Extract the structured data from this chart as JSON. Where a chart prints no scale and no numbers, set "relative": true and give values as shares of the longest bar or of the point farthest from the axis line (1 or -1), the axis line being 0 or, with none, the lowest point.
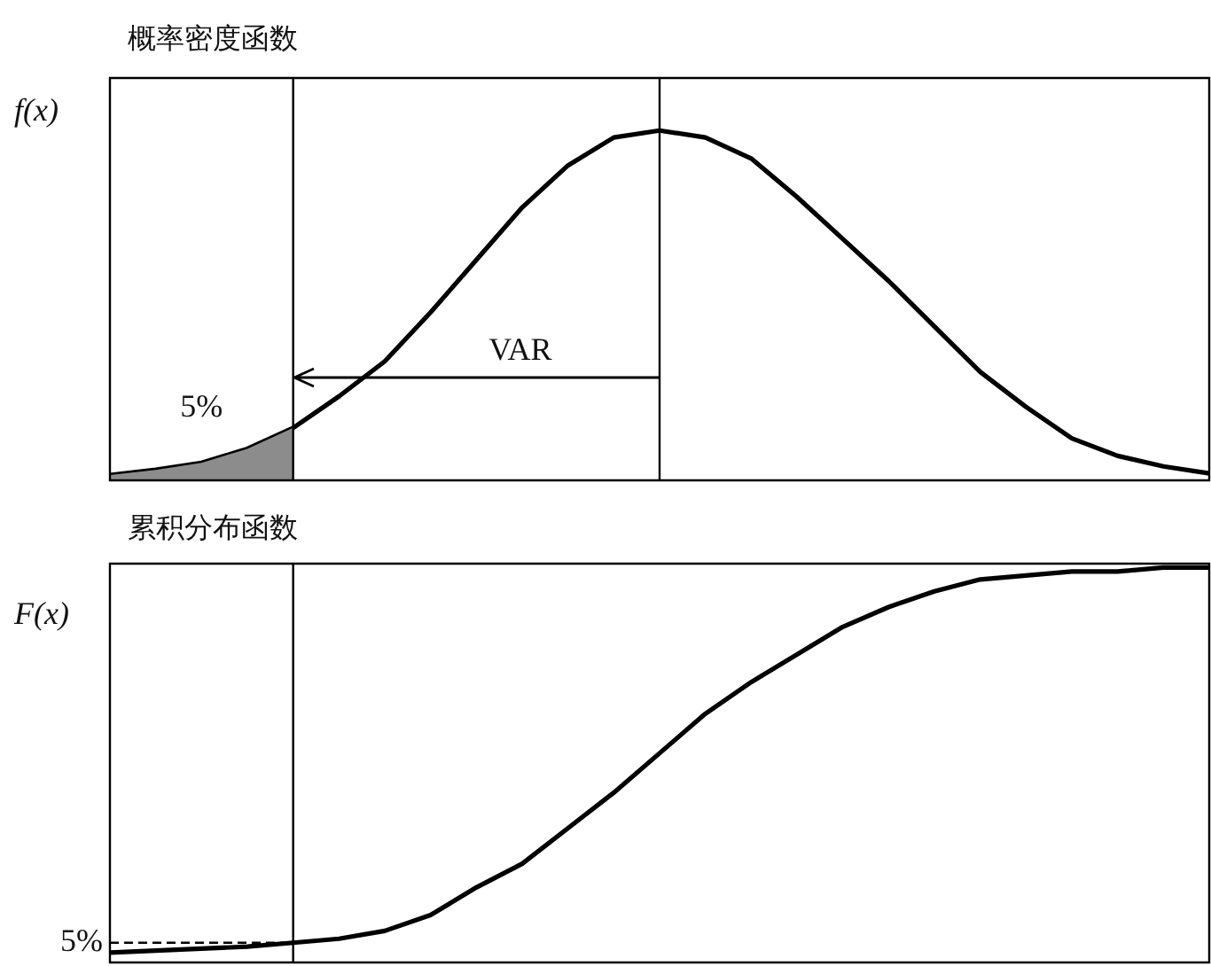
{
  "chart_data": [
    {
      "type": "line",
      "title": "概率密度函数",
      "ylabel": "f(x)",
      "relative": true,
      "categories": [
        null,
        null,
        null,
        null,
        null,
        null,
        null,
        null,
        null,
        null,
        null,
        null,
        null,
        null,
        null,
        null,
        null,
        null,
        null,
        null,
        null,
        null,
        null,
        null,
        null
      ],
      "series": [
        {
          "type": "area",
          "color": "#8c8c8c",
          "values": [
            0.015,
            0.03,
            0.05,
            0.09,
            0.15,
            null,
            null,
            null,
            null,
            null,
            null,
            null,
            null,
            null,
            null,
            null,
            null,
            null,
            null,
            null,
            null,
            null,
            null,
            null,
            null
          ]
        },
        {
          "color": "#000000",
          "values": [
            0.015,
            0.03,
            0.05,
            0.09,
            0.15,
            0.24,
            0.34,
            0.48,
            0.63,
            0.78,
            0.9,
            0.98,
            1,
            0.98,
            0.92,
            0.81,
            0.69,
            0.57,
            0.44,
            0.31,
            0.21,
            0.12,
            0.07,
            0.04,
            0.02
          ]
        }
      ],
      "annotations": [
        "5%",
        "VAR"
      ]
    },
    {
      "type": "line",
      "title": "累积分布函数",
      "ylabel": "F(x)",
      "relative": true,
      "categories": [
        null,
        null,
        null,
        null,
        null,
        null,
        null,
        null,
        null,
        null,
        null,
        null,
        null,
        null,
        null,
        null,
        null,
        null,
        null,
        null,
        null,
        null,
        null,
        null,
        null
      ],
      "series": [
        {
          "color": "#000000",
          "values": [
            0.025,
            0.03,
            0.035,
            0.04,
            0.05,
            0.06,
            0.08,
            0.12,
            0.19,
            0.25,
            0.34,
            0.43,
            0.53,
            0.63,
            0.71,
            0.78,
            0.85,
            0.9,
            0.94,
            0.97,
            0.98,
            0.99,
            0.99,
            1,
            1
          ]
        }
      ],
      "ref_lines": [
        {
          "axis": "y",
          "value": 0.05,
          "label": "5%",
          "line_style": "dashed"
        }
      ]
    }
  ]
}
